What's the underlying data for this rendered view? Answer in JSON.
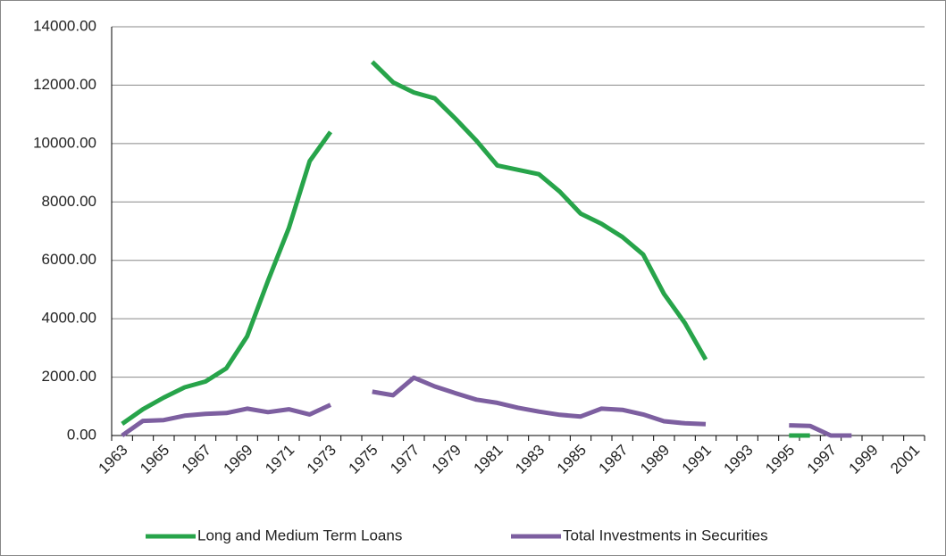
{
  "chart_data": {
    "type": "line",
    "categories": [
      "1963",
      null,
      "1965",
      null,
      "1967",
      null,
      "1969",
      null,
      "1971",
      null,
      "1973",
      null,
      "1975",
      null,
      "1977",
      null,
      "1979",
      null,
      "1981",
      null,
      "1983",
      null,
      "1985",
      null,
      "1987",
      null,
      "1989",
      null,
      "1991",
      null,
      "1993",
      null,
      "1995",
      null,
      "1997",
      null,
      "1999",
      null,
      "2001"
    ],
    "series": [
      {
        "name": "Long and Medium Term Loans",
        "color": "#27a44a",
        "values": [
          400,
          900,
          1300,
          1650,
          1850,
          2300,
          3400,
          5300,
          7100,
          9400,
          10400,
          null,
          12800,
          12100,
          11750,
          11550,
          10850,
          10100,
          9250,
          9100,
          8950,
          8350,
          7600,
          7250,
          6800,
          6200,
          4850,
          3850,
          2600,
          null,
          null,
          null,
          0,
          0,
          null,
          null,
          null,
          null,
          null
        ]
      },
      {
        "name": "Total Investments in Securities",
        "color": "#7d5fa0",
        "values": [
          0,
          500,
          530,
          680,
          740,
          770,
          920,
          800,
          900,
          720,
          1050,
          null,
          1500,
          1380,
          1980,
          1680,
          1450,
          1230,
          1120,
          950,
          820,
          710,
          650,
          920,
          880,
          720,
          490,
          420,
          390,
          null,
          null,
          null,
          350,
          330,
          0,
          0,
          null,
          null,
          null
        ]
      }
    ],
    "ylim": [
      0,
      14000
    ],
    "yticks": [
      {
        "value": 0,
        "label": "0.00"
      },
      {
        "value": 2000,
        "label": "2000.00"
      },
      {
        "value": 4000,
        "label": "4000.00"
      },
      {
        "value": 6000,
        "label": "6000.00"
      },
      {
        "value": 8000,
        "label": "8000.00"
      },
      {
        "value": 10000,
        "label": "10000.00"
      },
      {
        "value": 12000,
        "label": "12000.00"
      },
      {
        "value": 14000,
        "label": "14000.00"
      }
    ],
    "grid": true,
    "legend": "bottom"
  }
}
